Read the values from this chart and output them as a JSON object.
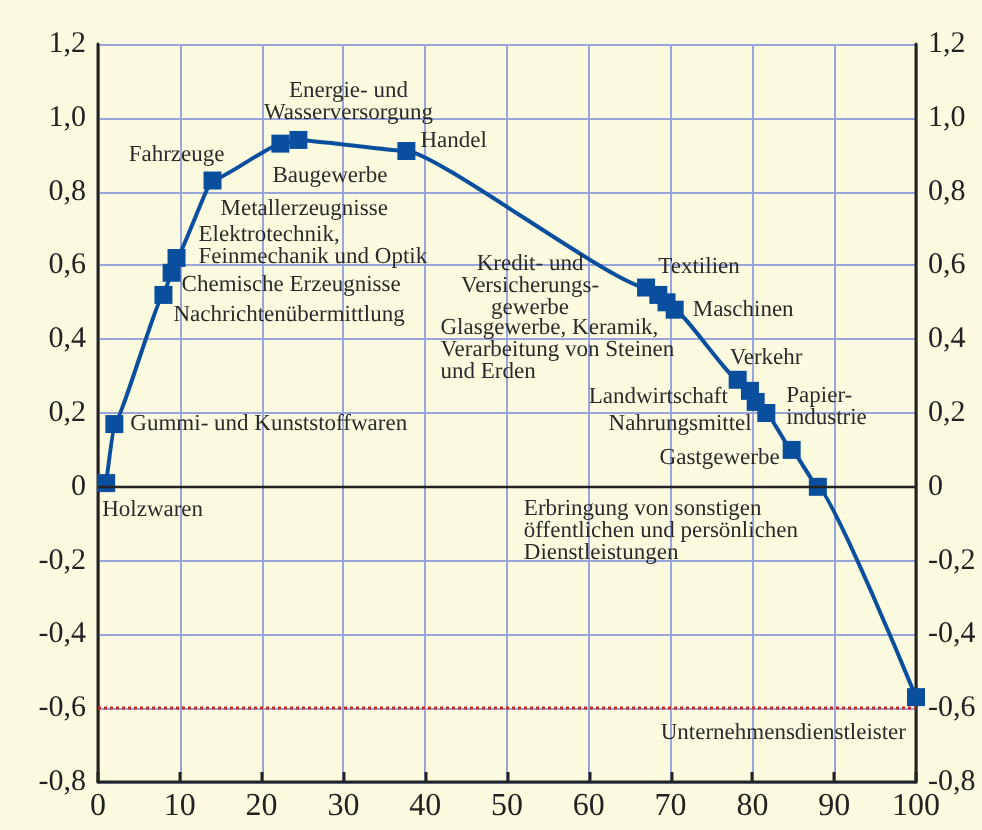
{
  "chart_data": {
    "type": "line",
    "x": [
      1,
      2,
      8,
      9,
      9.6,
      14,
      22.3,
      24.5,
      37.7,
      67,
      68.5,
      69.5,
      70.5,
      78.2,
      79.7,
      80.4,
      81.7,
      84.8,
      88,
      100
    ],
    "series": [
      {
        "color": "#0a4f9e",
        "values": [
          0.01,
          0.17,
          0.52,
          0.58,
          0.62,
          0.83,
          0.93,
          0.94,
          0.91,
          0.54,
          0.52,
          0.5,
          0.48,
          0.29,
          0.26,
          0.23,
          0.2,
          0.1,
          0,
          -0.57
        ]
      }
    ],
    "marker": "square",
    "line_style": "solid",
    "grid": true,
    "xlim": [
      0,
      100
    ],
    "xticks": [
      0,
      10,
      20,
      30,
      40,
      50,
      60,
      70,
      80,
      90,
      100
    ],
    "ylim": [
      -0.8,
      1.2
    ],
    "yticks": [
      {
        "value": -0.8,
        "label": "-0,8"
      },
      {
        "value": -0.6,
        "label": "-0,6"
      },
      {
        "value": -0.4,
        "label": "-0,4"
      },
      {
        "value": -0.2,
        "label": "-0,2"
      },
      0,
      {
        "value": 0.2,
        "label": "0,2"
      },
      {
        "value": 0.4,
        "label": "0,4"
      },
      {
        "value": 0.6,
        "label": "0,6"
      },
      {
        "value": 0.8,
        "label": "0,8"
      },
      {
        "value": 1.0,
        "label": "1,0"
      },
      {
        "value": 1.2,
        "label": "1,2"
      }
    ],
    "y2lim": [
      -0.8,
      1.2
    ],
    "y2ticks": [
      {
        "value": -0.8,
        "label": "-0,8"
      },
      {
        "value": -0.6,
        "label": "-0,6"
      },
      {
        "value": -0.4,
        "label": "-0,4"
      },
      {
        "value": -0.2,
        "label": "-0,2"
      },
      0,
      {
        "value": 0.2,
        "label": "0,2"
      },
      {
        "value": 0.4,
        "label": "0,4"
      },
      {
        "value": 0.6,
        "label": "0,6"
      },
      {
        "value": 0.8,
        "label": "0,8"
      },
      {
        "value": 1.0,
        "label": "1,0"
      },
      {
        "value": 1.2,
        "label": "1,2"
      }
    ],
    "ref_lines": [
      {
        "axis": "y",
        "value": 0,
        "color": "#222222",
        "line_style": "solid"
      },
      {
        "axis": "y",
        "value": -0.6,
        "color": "#c0302a",
        "line_style": "dotted"
      }
    ],
    "annotations": [
      {
        "text": "Holzwaren",
        "x": 1,
        "y": 0.01
      },
      {
        "text": "Gummi- und Kunststoffwaren",
        "x": 2,
        "y": 0.17
      },
      {
        "text": "Nachrichtenübermittlung",
        "x": 8,
        "y": 0.52
      },
      {
        "text": "Chemische Erzeugnisse",
        "x": 9,
        "y": 0.58
      },
      {
        "text": "Elektrotechnik,\nFeinmechanik und Optik",
        "x": 9.6,
        "y": 0.62
      },
      {
        "text": "Metallerzeugnisse",
        "x": 14,
        "y": 0.83
      },
      {
        "text": "Fahrzeuge",
        "x": 14,
        "y": 0.83
      },
      {
        "text": "Baugewerbe",
        "x": 22.3,
        "y": 0.93
      },
      {
        "text": "Energie- und\nWasserversorgung",
        "x": 24.5,
        "y": 0.94
      },
      {
        "text": "Handel",
        "x": 37.7,
        "y": 0.91
      },
      {
        "text": "Kredit- und\nVersicherungs-\ngewerbe",
        "x": 67,
        "y": 0.54
      },
      {
        "text": "Textilien",
        "x": 68.5,
        "y": 0.52
      },
      {
        "text": "Glasgewerbe, Keramik,\nVerarbeitung von Steinen\nund Erden",
        "x": 69.5,
        "y": 0.5
      },
      {
        "text": "Maschinen",
        "x": 70.5,
        "y": 0.48
      },
      {
        "text": "Verkehr",
        "x": 78.2,
        "y": 0.29
      },
      {
        "text": "Landwirtschaft",
        "x": 79.7,
        "y": 0.26
      },
      {
        "text": "Nahrungsmittel",
        "x": 80.4,
        "y": 0.23
      },
      {
        "text": "Papier-\nindustrie",
        "x": 81.7,
        "y": 0.2
      },
      {
        "text": "Gastgewerbe",
        "x": 84.8,
        "y": 0.1
      },
      {
        "text": "Erbringung von sonstigen\nöffentlichen und persönlichen\nDienstleistungen",
        "x": 88,
        "y": 0
      },
      {
        "text": "Unternehmensdienstleister",
        "x": 100,
        "y": -0.57
      }
    ]
  }
}
